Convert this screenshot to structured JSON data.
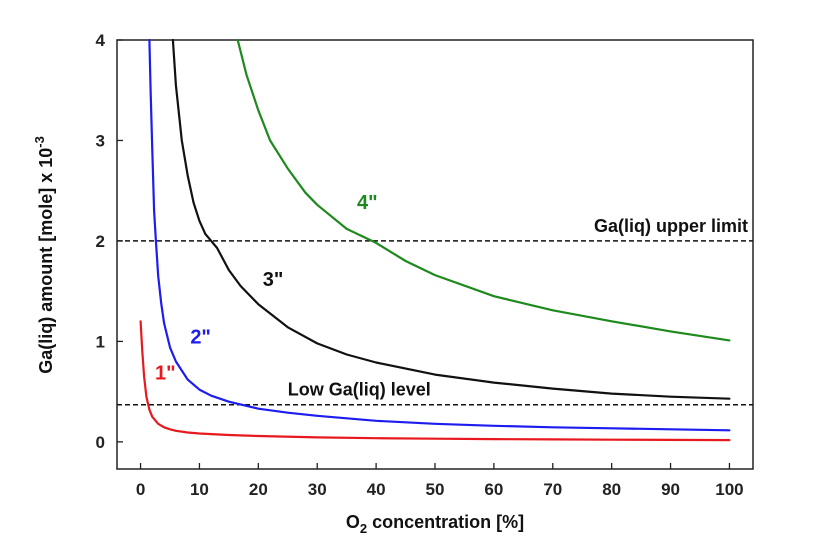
{
  "chart_data": {
    "type": "line",
    "xlabel": "O",
    "xlabel_sub": "2",
    "xlabel_rest": " concentration [%]",
    "ylabel": "Ga(liq) amount [mole] x 10",
    "ylabel_sup": "-3",
    "xlim": [
      -4,
      104
    ],
    "ylim": [
      -0.27,
      4.0
    ],
    "xticks": [
      0,
      10,
      20,
      30,
      40,
      50,
      60,
      70,
      80,
      90,
      100
    ],
    "xtick_labels": [
      "0",
      "10",
      "20",
      "30",
      "40",
      "50",
      "60",
      "70",
      "80",
      "90",
      "100"
    ],
    "yticks": [
      0,
      1,
      2,
      3,
      4
    ],
    "ytick_labels": [
      "0",
      "1",
      "2",
      "3",
      "4"
    ],
    "grid": false,
    "series": [
      {
        "name": "1\"",
        "color": "#e8191e",
        "x": [
          0,
          0.3,
          0.6,
          1,
          1.5,
          2,
          3,
          4,
          5,
          6,
          8,
          10,
          15,
          20,
          30,
          40,
          50,
          60,
          70,
          80,
          90,
          100
        ],
        "y": [
          1.2,
          0.9,
          0.65,
          0.45,
          0.32,
          0.25,
          0.18,
          0.145,
          0.125,
          0.11,
          0.093,
          0.083,
          0.068,
          0.058,
          0.045,
          0.037,
          0.032,
          0.028,
          0.025,
          0.022,
          0.02,
          0.018
        ]
      },
      {
        "name": "2\"",
        "color": "#1d1df0",
        "x": [
          1.5,
          1.7,
          2,
          2.3,
          2.6,
          3,
          3.5,
          4,
          5,
          6,
          8,
          10,
          12,
          15,
          20,
          25,
          30,
          40,
          50,
          60,
          70,
          80,
          90,
          100
        ],
        "y": [
          4.0,
          3.5,
          2.9,
          2.3,
          2.0,
          1.65,
          1.38,
          1.18,
          0.94,
          0.8,
          0.62,
          0.52,
          0.46,
          0.4,
          0.33,
          0.29,
          0.26,
          0.21,
          0.18,
          0.16,
          0.145,
          0.135,
          0.125,
          0.115
        ]
      },
      {
        "name": "3\"",
        "color": "#111111",
        "x": [
          5.5,
          6,
          7,
          8,
          9,
          10,
          11,
          12,
          13,
          15,
          17,
          20,
          25,
          30,
          35,
          40,
          50,
          60,
          70,
          80,
          90,
          100
        ],
        "y": [
          4.0,
          3.55,
          3.0,
          2.65,
          2.38,
          2.2,
          2.07,
          2.0,
          1.93,
          1.71,
          1.55,
          1.37,
          1.14,
          0.98,
          0.87,
          0.79,
          0.67,
          0.59,
          0.53,
          0.48,
          0.45,
          0.43
        ]
      },
      {
        "name": "4\"",
        "color": "#1e8a1e",
        "x": [
          16.5,
          18,
          20,
          22,
          25,
          28,
          30,
          35,
          40,
          45,
          50,
          60,
          70,
          80,
          90,
          100
        ],
        "y": [
          4.0,
          3.65,
          3.3,
          3.0,
          2.72,
          2.48,
          2.36,
          2.12,
          1.98,
          1.8,
          1.66,
          1.45,
          1.31,
          1.2,
          1.1,
          1.01
        ]
      }
    ],
    "series_label_positions": [
      {
        "x": 4.2,
        "y": 0.62
      },
      {
        "x": 10.2,
        "y": 0.98
      },
      {
        "x": 22.5,
        "y": 1.55
      },
      {
        "x": 38.5,
        "y": 2.32
      }
    ],
    "reference_lines": [
      {
        "name": "Ga(liq) upper limit",
        "y": 2.0,
        "style": "dashed",
        "color": "#111111",
        "label": "Ga(liq) upper limit"
      },
      {
        "name": "Low Ga(liq) level",
        "y": 0.37,
        "style": "dashed",
        "color": "#111111",
        "label": "Low Ga(liq) level"
      }
    ]
  }
}
